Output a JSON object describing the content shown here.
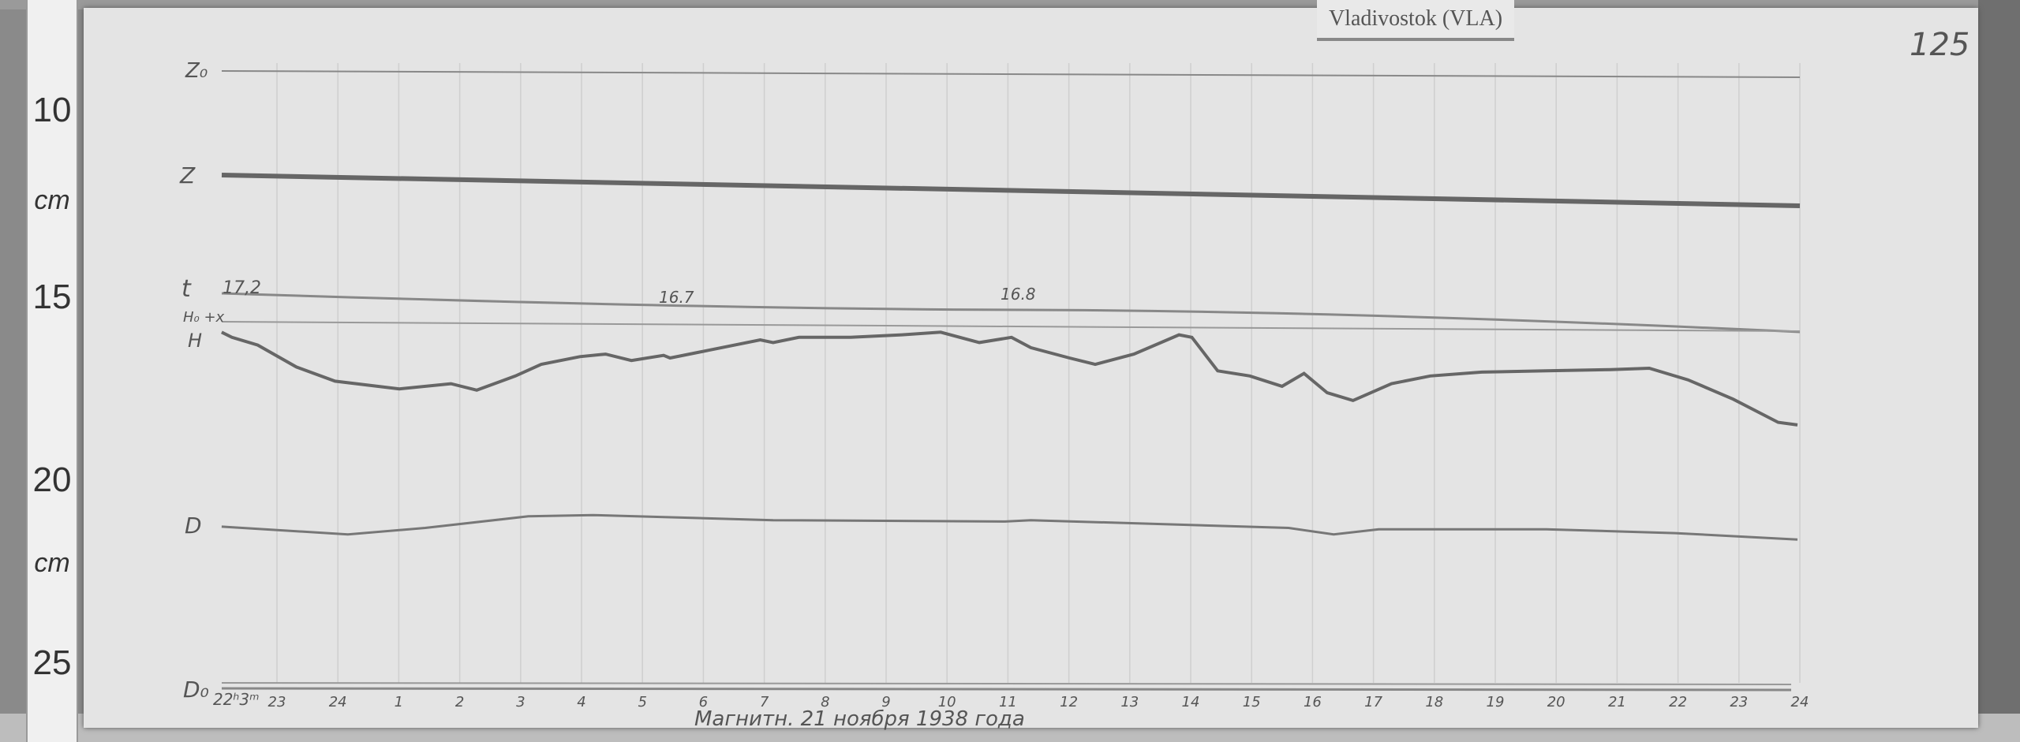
{
  "station_label": "Vladivostok (VLA)",
  "page_number": "125",
  "ruler": {
    "marks": [
      "10",
      "cm",
      "15",
      "20",
      "cm",
      "25"
    ]
  },
  "trace_labels": {
    "z0": "Z₀",
    "z": "Z",
    "t": "t",
    "t_start_value": "17,2",
    "h0": "H₀ +x",
    "h": "H",
    "d": "D",
    "d0": "D₀",
    "d0_time": "22ʰ3ᵐ"
  },
  "temperature_readings": [
    "16.7",
    "16.8"
  ],
  "hour_ticks": [
    "23",
    "24",
    "1",
    "2",
    "3",
    "4",
    "5",
    "6",
    "7",
    "8",
    "9",
    "10",
    "11",
    "12",
    "13",
    "14",
    "15",
    "16",
    "17",
    "18",
    "19",
    "20",
    "21",
    "22",
    "23",
    "24"
  ],
  "caption": "Магнитн. 21 ноября 1938 года"
}
